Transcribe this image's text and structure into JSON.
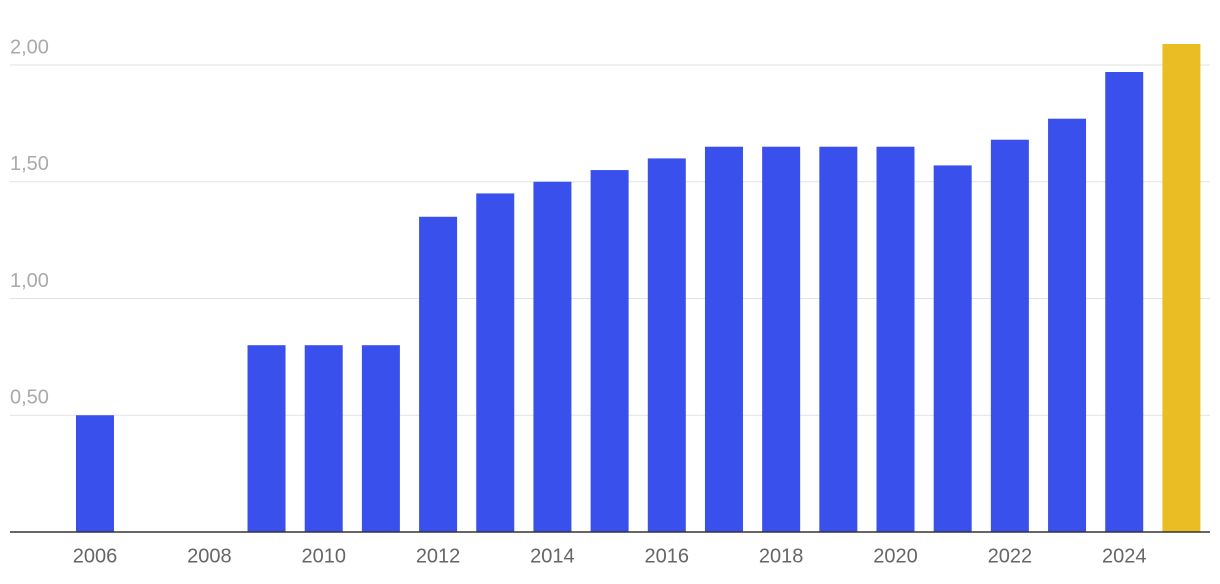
{
  "chart_data": {
    "type": "bar",
    "categories": [
      "2006",
      null,
      "2008",
      null,
      "2010",
      null,
      "2012",
      null,
      "2014",
      null,
      "2016",
      null,
      "2018",
      null,
      "2020",
      null,
      "2022",
      null,
      "2024",
      null
    ],
    "values": [
      0.5,
      null,
      null,
      0.8,
      0.8,
      0.8,
      1.35,
      1.45,
      1.5,
      1.55,
      1.6,
      1.65,
      1.65,
      1.65,
      1.65,
      1.57,
      1.68,
      1.77,
      1.97,
      2.09
    ],
    "colors": [
      "#3a50ec",
      "#3a50ec",
      "#3a50ec",
      "#3a50ec",
      "#3a50ec",
      "#3a50ec",
      "#3a50ec",
      "#3a50ec",
      "#3a50ec",
      "#3a50ec",
      "#3a50ec",
      "#3a50ec",
      "#3a50ec",
      "#3a50ec",
      "#3a50ec",
      "#3a50ec",
      "#3a50ec",
      "#3a50ec",
      "#3a50ec",
      "#ebbd25"
    ],
    "ylim": [
      0,
      2.1
    ],
    "yticks": [
      {
        "value": 0.5,
        "label": "0,50"
      },
      {
        "value": 1,
        "label": "1,00"
      },
      {
        "value": 1.5,
        "label": "1,50"
      },
      {
        "value": 2,
        "label": "2,00"
      }
    ],
    "grid": true
  }
}
